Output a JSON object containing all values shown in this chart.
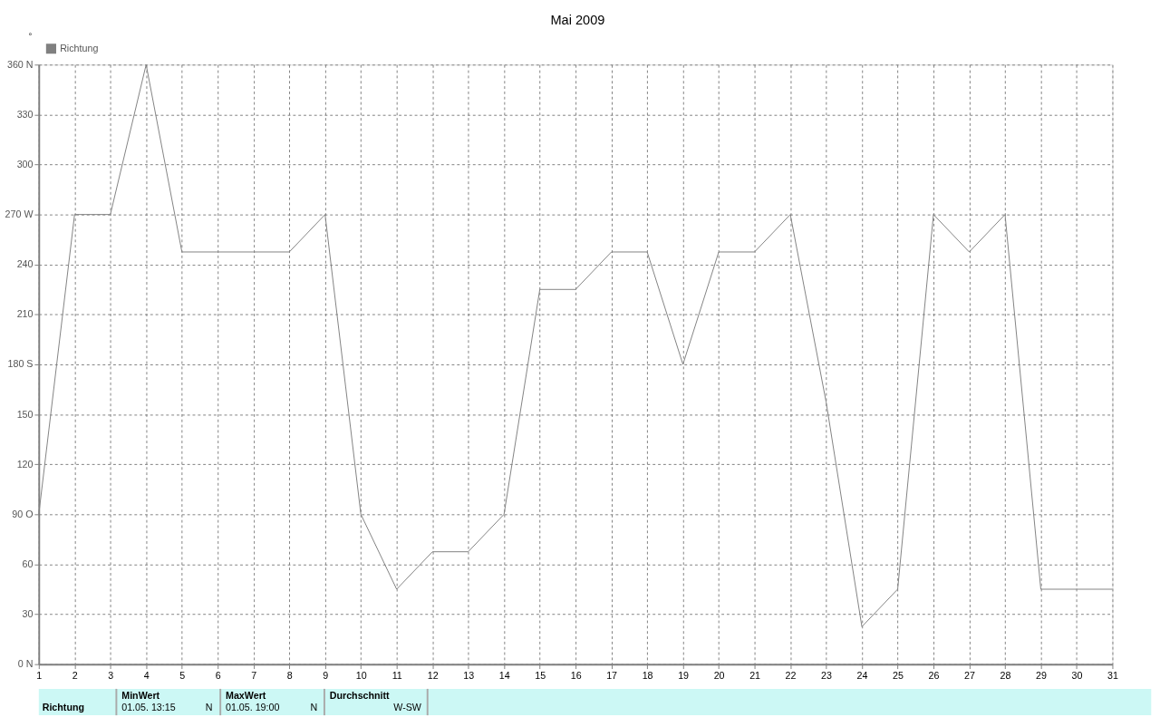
{
  "chart_data": {
    "type": "line",
    "title": "Mai 2009",
    "ylabel": "°",
    "x": [
      1,
      2,
      3,
      4,
      5,
      6,
      7,
      8,
      9,
      10,
      11,
      12,
      13,
      14,
      15,
      16,
      17,
      18,
      19,
      20,
      21,
      22,
      23,
      24,
      25,
      26,
      27,
      28,
      29,
      30,
      31
    ],
    "series": [
      {
        "name": "Richtung",
        "color": "#808080",
        "values": [
          90,
          270,
          270,
          360,
          247.5,
          247.5,
          247.5,
          247.5,
          270,
          90,
          45,
          67.5,
          67.5,
          90,
          225,
          225,
          247.5,
          247.5,
          180,
          247.5,
          247.5,
          270,
          157.5,
          22.5,
          45,
          270,
          247.5,
          270,
          45,
          45,
          45
        ]
      }
    ],
    "xlim": [
      1,
      31
    ],
    "xticks": [
      1,
      2,
      3,
      4,
      5,
      6,
      7,
      8,
      9,
      10,
      11,
      12,
      13,
      14,
      15,
      16,
      17,
      18,
      19,
      20,
      21,
      22,
      23,
      24,
      25,
      26,
      27,
      28,
      29,
      30,
      31
    ],
    "ylim": [
      0,
      360
    ],
    "yticks": [
      {
        "value": 0,
        "label": "0   N"
      },
      30,
      60,
      {
        "value": 90,
        "label": "90  O"
      },
      120,
      150,
      {
        "value": 180,
        "label": "180 S"
      },
      210,
      240,
      {
        "value": 270,
        "label": "270 W"
      },
      300,
      330,
      {
        "value": 360,
        "label": "360 N"
      }
    ],
    "grid": true,
    "legend": "top left",
    "marker": "none",
    "line_style": "solid",
    "annotations": [
      "Richtung",
      "MinWert",
      "01.05.  13:15",
      "N",
      "MaxWert",
      "01.05.  19:00",
      "N",
      "Durchschnitt",
      "W-SW"
    ]
  }
}
